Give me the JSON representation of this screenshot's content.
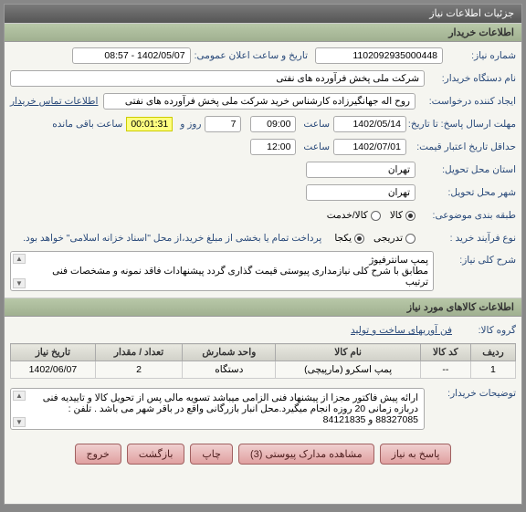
{
  "window": {
    "title": "جزئیات اطلاعات نیاز"
  },
  "section1": {
    "title": "اطلاعات خریدار"
  },
  "fields": {
    "need_no_label": "شماره نیاز:",
    "need_no": "1102092935000448",
    "announce_label": "تاریخ و ساعت اعلان عمومی:",
    "announce": "1402/05/07 - 08:57",
    "buyer_org_label": "نام دستگاه خریدار:",
    "buyer_org": "شرکت ملی پخش فرآورده های نفتی",
    "requester_label": "ایجاد کننده درخواست:",
    "requester": "روح اله جهانگیرزاده کارشناس خرید شرکت ملی پخش فرآورده های نفتی",
    "contact_link": "اطلاعات تماس خریدار",
    "deadline_label": "مهلت ارسال پاسخ: تا تاریخ:",
    "deadline_date": "1402/05/14",
    "time_label": "ساعت",
    "deadline_time": "09:00",
    "days_left": "7",
    "days_suffix": "روز و",
    "timer": "00:01:31",
    "remain_suffix": "ساعت باقی مانده",
    "min_valid_label": "حداقل تاریخ اعتبار قیمت:",
    "min_valid_date": "1402/07/01",
    "min_valid_time": "12:00",
    "deliver_prov_label": "استان محل تحویل:",
    "deliver_prov": "تهران",
    "deliver_city_label": "شهر محل تحویل:",
    "deliver_city": "تهران",
    "subject_class_label": "طبقه بندی موضوعی:",
    "radio_goods": "کالا",
    "radio_service": "کالا/خدمت",
    "purchase_proc_label": "نوع فرآیند خرید :",
    "radio_onestage": "تدریجی",
    "radio_twostage": "یکجا",
    "payment_note": "پرداخت تمام یا بخشی از مبلغ خرید،از محل \"اسناد خزانه اسلامی\" خواهد بود.",
    "desc_label": "شرح کلی نیاز:",
    "desc_text": "پمپ سانترفیوژ\nمطابق با شرح کلی نیازمداری پیوستی قیمت گذاری گردد پیشنهادات فاقد نمونه و مشخصات فنی ترتیب"
  },
  "section2": {
    "title": "اطلاعات کالاهای مورد نیاز"
  },
  "goods": {
    "group_label": "گروه کالا:",
    "mfg_label": "فن آوریهای ساخت و تولید",
    "columns": [
      "ردیف",
      "کد کالا",
      "نام کالا",
      "واحد شمارش",
      "تعداد / مقدار",
      "تاریخ نیاز"
    ],
    "rows": [
      [
        "1",
        "--",
        "پمپ اسکرو (مارپیچی)",
        "دستگاه",
        "2",
        "1402/06/07"
      ]
    ]
  },
  "notes": {
    "label": "توضیحات خریدار:",
    "text": "ارائه پیش فاکتور مجزا از پیشنهاد فنی الزامی میباشد تسویه مالی پس از تحویل کالا و تاییدیه فنی دربازه زمانی 20 روزه انجام میگیرد.محل انبار بازرگانی واقع در باقر شهر می باشد . تلفن : 88327085 و 84121835"
  },
  "buttons": {
    "reply": "پاسخ به نیاز",
    "attachments": "مشاهده مدارک پیوستی  (3)",
    "print": "چاپ",
    "back": "بازگشت",
    "exit": "خروج"
  },
  "colors": {
    "header_bg": "#6a6a6a",
    "section_bg": "#a8b898",
    "label": "#2a4a7a",
    "btn_bg": "#e0a0a0",
    "timer_bg": "#ffff80"
  }
}
